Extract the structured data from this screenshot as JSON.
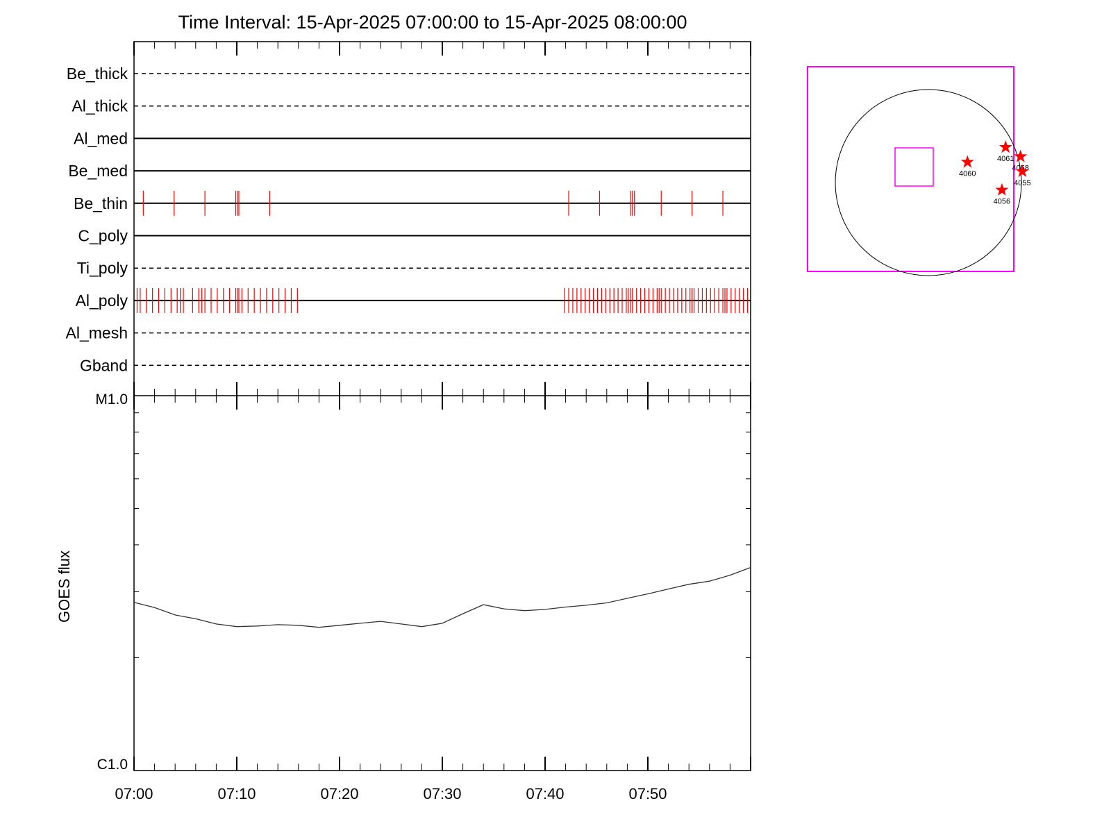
{
  "title": "Time Interval: 15-Apr-2025 07:00:00 to 15-Apr-2025 08:00:00",
  "colors": {
    "event_mark": "#ff0000",
    "fov_box": "#ff00ff",
    "line": "#000000",
    "goes_curve": "#333333",
    "star": "#ff0000"
  },
  "chart_data": [
    {
      "type": "timeline",
      "x_range": [
        "07:00",
        "08:00"
      ],
      "channels": [
        {
          "name": "Be_thick",
          "style": "dashed",
          "events": []
        },
        {
          "name": "Al_thick",
          "style": "dashed",
          "events": []
        },
        {
          "name": "Al_med",
          "style": "solid",
          "events": []
        },
        {
          "name": "Be_med",
          "style": "solid",
          "events": []
        },
        {
          "name": "Be_thin",
          "style": "solid",
          "events": [
            0.9,
            3.9,
            6.9,
            9.9,
            10.05,
            10.2,
            13.2,
            42.3,
            45.3,
            48.3,
            48.5,
            48.7,
            51.3,
            54.3,
            57.3
          ]
        },
        {
          "name": "C_poly",
          "style": "solid",
          "events": []
        },
        {
          "name": "Ti_poly",
          "style": "dashed",
          "events": []
        },
        {
          "name": "Al_poly",
          "style": "solid",
          "events": [
            0.3,
            0.6,
            1.2,
            1.8,
            2.4,
            3.0,
            3.6,
            4.2,
            4.5,
            4.8,
            5.7,
            6.3,
            6.6,
            6.9,
            7.5,
            8.1,
            8.7,
            9.3,
            9.9,
            10.05,
            10.2,
            10.5,
            11.1,
            11.7,
            12.3,
            12.9,
            13.5,
            14.1,
            14.7,
            15.3,
            15.9,
            41.9,
            42.3,
            42.7,
            43.1,
            43.5,
            43.9,
            44.3,
            44.7,
            45.1,
            45.5,
            45.9,
            46.3,
            46.7,
            47.1,
            47.5,
            47.9,
            48.1,
            48.3,
            48.5,
            48.9,
            49.3,
            49.7,
            50.1,
            50.5,
            50.9,
            51.1,
            51.3,
            51.7,
            52.1,
            52.5,
            52.9,
            53.3,
            53.7,
            54.1,
            54.3,
            54.5,
            54.9,
            55.3,
            55.7,
            56.1,
            56.5,
            56.9,
            57.3,
            57.5,
            57.7,
            58.1,
            58.5,
            58.9,
            59.3,
            59.7
          ]
        },
        {
          "name": "Al_mesh",
          "style": "dashed",
          "events": []
        },
        {
          "name": "Gband",
          "style": "dashed",
          "events": []
        }
      ]
    },
    {
      "type": "line",
      "series_label": "GOES flux",
      "ylabel": "GOES flux",
      "y_scale": "log",
      "ylim": [
        1e-06,
        1e-05
      ],
      "y_tick_labels": [
        "C1.0",
        "M1.0"
      ],
      "x_tick_labels": [
        "07:00",
        "07:10",
        "07:20",
        "07:30",
        "07:40",
        "07:50"
      ],
      "x": [
        0,
        2,
        4,
        6,
        8,
        10,
        12,
        14,
        16,
        18,
        20,
        22,
        24,
        26,
        28,
        30,
        32,
        34,
        36,
        38,
        40,
        42,
        44,
        46,
        48,
        50,
        52,
        54,
        56,
        58,
        60
      ],
      "y": [
        2.81e-06,
        2.72e-06,
        2.6e-06,
        2.54e-06,
        2.46e-06,
        2.42e-06,
        2.43e-06,
        2.45e-06,
        2.44e-06,
        2.41e-06,
        2.44e-06,
        2.47e-06,
        2.5e-06,
        2.46e-06,
        2.42e-06,
        2.47e-06,
        2.62e-06,
        2.77e-06,
        2.7e-06,
        2.67e-06,
        2.69e-06,
        2.73e-06,
        2.76e-06,
        2.8e-06,
        2.88e-06,
        2.96e-06,
        3.05e-06,
        3.14e-06,
        3.2e-06,
        3.32e-06,
        3.48e-06
      ]
    },
    {
      "type": "scatter",
      "description_type": "solar disk map",
      "points": [
        {
          "label": "4060",
          "x": 0.42,
          "y": 0.22
        },
        {
          "label": "4061",
          "x": 0.83,
          "y": 0.38
        },
        {
          "label": "4058",
          "x": 0.99,
          "y": 0.28
        },
        {
          "label": "4055",
          "x": 1.01,
          "y": 0.12
        },
        {
          "label": "4056",
          "x": 0.79,
          "y": -0.08
        }
      ]
    }
  ]
}
